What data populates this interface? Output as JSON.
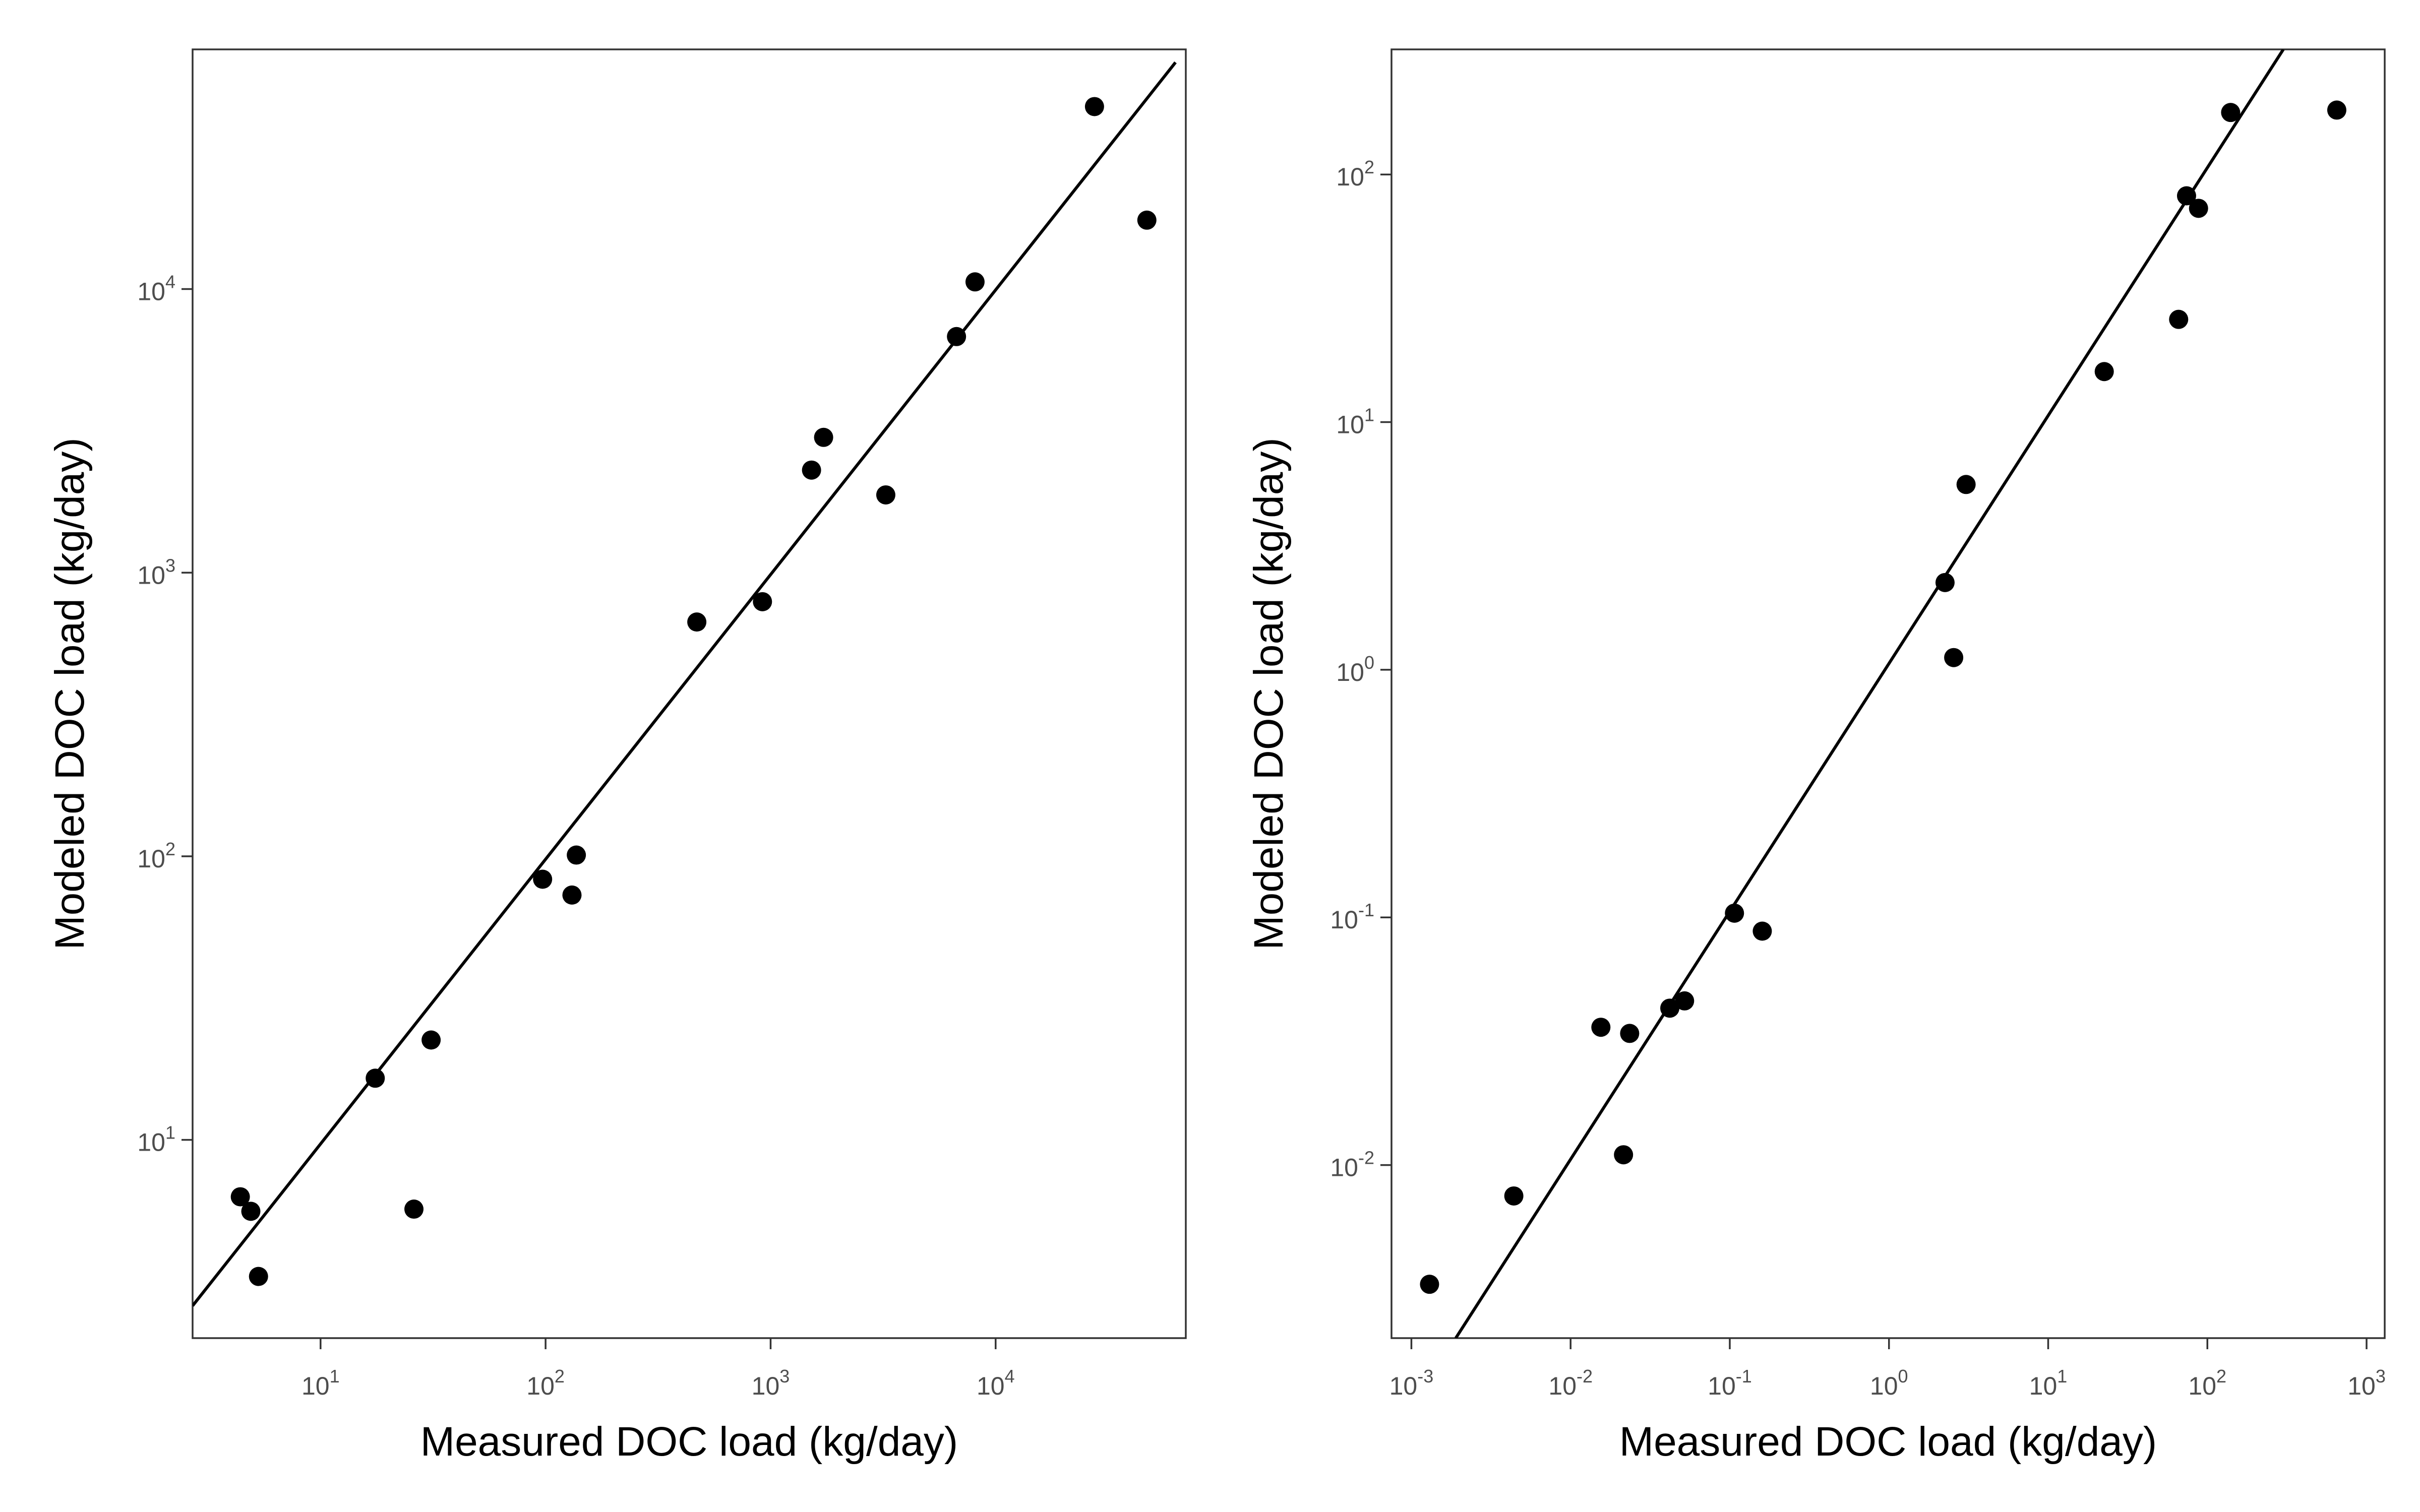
{
  "chart_data": [
    {
      "type": "scatter",
      "xlabel": "Measured DOC load (kg/day)",
      "ylabel": "Modeled DOC load (kg/day)",
      "x_scale": "log10",
      "y_scale": "log10",
      "xlim": [
        2.7,
        70000
      ],
      "ylim": [
        2.0,
        70000
      ],
      "grid": false,
      "x_ticks": [
        {
          "value": 10,
          "base": "10",
          "exp": "1"
        },
        {
          "value": 100,
          "base": "10",
          "exp": "2"
        },
        {
          "value": 1000,
          "base": "10",
          "exp": "3"
        },
        {
          "value": 10000,
          "base": "10",
          "exp": "4"
        }
      ],
      "y_ticks": [
        {
          "value": 10,
          "base": "10",
          "exp": "1"
        },
        {
          "value": 100,
          "base": "10",
          "exp": "2"
        },
        {
          "value": 1000,
          "base": "10",
          "exp": "3"
        },
        {
          "value": 10000,
          "base": "10",
          "exp": "4"
        }
      ],
      "points": [
        {
          "x": 4.4,
          "y": 6.3
        },
        {
          "x": 4.9,
          "y": 5.6
        },
        {
          "x": 5.3,
          "y": 3.3
        },
        {
          "x": 17.5,
          "y": 16.5
        },
        {
          "x": 26,
          "y": 5.7
        },
        {
          "x": 31,
          "y": 22.5
        },
        {
          "x": 97,
          "y": 83
        },
        {
          "x": 131,
          "y": 73
        },
        {
          "x": 137,
          "y": 101
        },
        {
          "x": 470,
          "y": 670
        },
        {
          "x": 920,
          "y": 790
        },
        {
          "x": 1520,
          "y": 2300
        },
        {
          "x": 1720,
          "y": 3000
        },
        {
          "x": 3250,
          "y": 1880
        },
        {
          "x": 6700,
          "y": 6800
        },
        {
          "x": 8100,
          "y": 10600
        },
        {
          "x": 27500,
          "y": 44000
        },
        {
          "x": 47000,
          "y": 17500
        }
      ],
      "fit_line": {
        "x": [
          2.7,
          63000
        ],
        "y": [
          2.6,
          63000
        ]
      }
    },
    {
      "type": "scatter",
      "xlabel": "Measured DOC load (kg/day)",
      "ylabel": "Modeled DOC load (kg/day)",
      "x_scale": "log10",
      "y_scale": "log10",
      "xlim": [
        0.00075,
        1300
      ],
      "ylim": [
        0.002,
        320
      ],
      "grid": false,
      "x_ticks": [
        {
          "value": 0.001,
          "base": "10",
          "exp": "-3"
        },
        {
          "value": 0.01,
          "base": "10",
          "exp": "-2"
        },
        {
          "value": 0.1,
          "base": "10",
          "exp": "-1"
        },
        {
          "value": 1,
          "base": "10",
          "exp": "0"
        },
        {
          "value": 10,
          "base": "10",
          "exp": "1"
        },
        {
          "value": 100,
          "base": "10",
          "exp": "2"
        },
        {
          "value": 1000,
          "base": "10",
          "exp": "3"
        }
      ],
      "y_ticks": [
        {
          "value": 0.01,
          "base": "10",
          "exp": "-2"
        },
        {
          "value": 0.1,
          "base": "10",
          "exp": "-1"
        },
        {
          "value": 1,
          "base": "10",
          "exp": "0"
        },
        {
          "value": 10,
          "base": "10",
          "exp": "1"
        },
        {
          "value": 100,
          "base": "10",
          "exp": "2"
        }
      ],
      "points": [
        {
          "x": 0.0013,
          "y": 0.0033
        },
        {
          "x": 0.0044,
          "y": 0.0075
        },
        {
          "x": 0.0155,
          "y": 0.036
        },
        {
          "x": 0.0215,
          "y": 0.011
        },
        {
          "x": 0.0235,
          "y": 0.034
        },
        {
          "x": 0.042,
          "y": 0.043
        },
        {
          "x": 0.052,
          "y": 0.046
        },
        {
          "x": 0.107,
          "y": 0.104
        },
        {
          "x": 0.16,
          "y": 0.088
        },
        {
          "x": 2.25,
          "y": 2.25
        },
        {
          "x": 2.55,
          "y": 1.12
        },
        {
          "x": 3.05,
          "y": 5.6
        },
        {
          "x": 22.5,
          "y": 16
        },
        {
          "x": 66,
          "y": 26
        },
        {
          "x": 74,
          "y": 82
        },
        {
          "x": 88,
          "y": 73
        },
        {
          "x": 140,
          "y": 178
        },
        {
          "x": 650,
          "y": 182
        }
      ],
      "fit_line": {
        "x": [
          0.0019,
          300
        ],
        "y": [
          0.002,
          320
        ]
      }
    }
  ]
}
